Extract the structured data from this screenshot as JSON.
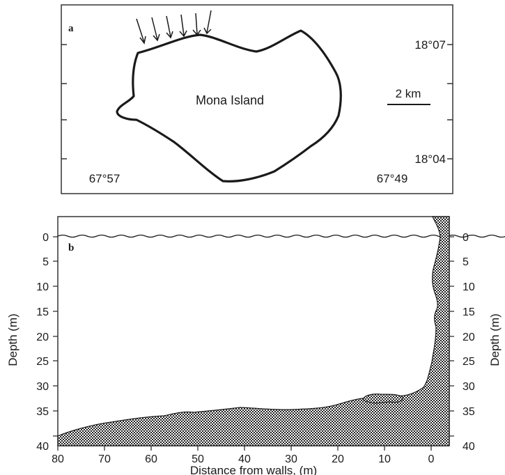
{
  "panel_a": {
    "letter": "a",
    "island_label": "Mona Island",
    "scale_label": "2 km",
    "lat_top": "18°07",
    "lat_bottom": "18°04",
    "lon_left": "67°57",
    "lon_right": "67°49"
  },
  "panel_b": {
    "letter": "b",
    "xlabel": "Distance from walls, (m)",
    "ylabel_left": "Depth (m)",
    "ylabel_right": "Depth (m)",
    "x_ticks": [
      "80",
      "70",
      "60",
      "50",
      "40",
      "30",
      "20",
      "10",
      "0"
    ],
    "y_ticks": [
      "0",
      "5",
      "10",
      "15",
      "20",
      "25",
      "30",
      "35",
      "40"
    ]
  },
  "chart_data": {
    "type": "area",
    "xlabel": "Distance from walls, (m)",
    "ylabel": "Depth (m)",
    "xlim": [
      80,
      -4
    ],
    "ylim": [
      0,
      40
    ],
    "x": [
      80,
      75,
      70,
      65,
      60,
      55,
      50,
      45,
      40,
      35,
      30,
      25,
      20,
      15,
      10,
      5,
      3,
      1,
      0
    ],
    "y": [
      38.5,
      37.5,
      37,
      36.3,
      35.8,
      35.5,
      35,
      34.6,
      34,
      34.4,
      34.3,
      33.5,
      32.5,
      31.8,
      31.5,
      31,
      30.5,
      29,
      22
    ],
    "colors": {
      "fill": "#2a2a2a",
      "ink": "#1a1a1a"
    }
  }
}
